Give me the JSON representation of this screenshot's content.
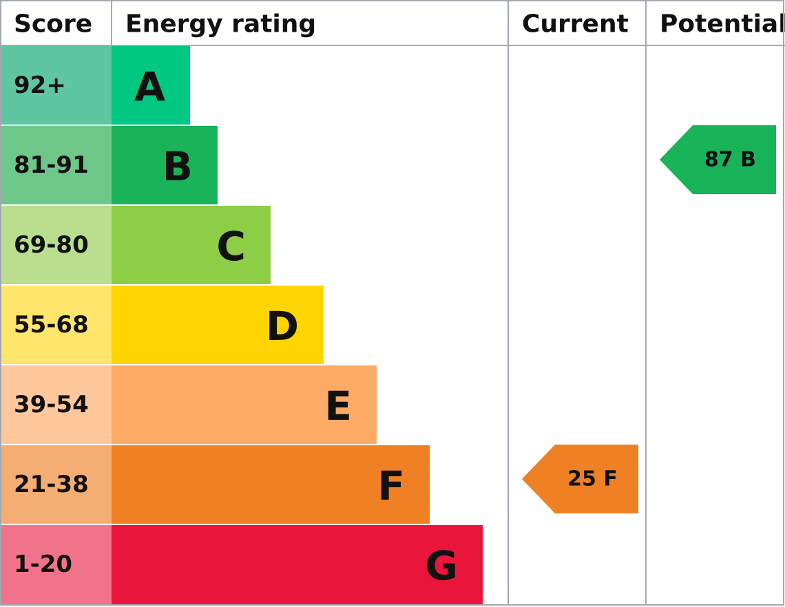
{
  "header": {
    "score": "Score",
    "energy_rating": "Energy rating",
    "current": "Current",
    "potential": "Potential"
  },
  "bands": [
    {
      "score": "92+",
      "letter": "A",
      "color": "#00c781",
      "score_color": "#5fc6a3"
    },
    {
      "score": "81-91",
      "letter": "B",
      "color": "#19b459",
      "score_color": "#6dc88a"
    },
    {
      "score": "69-80",
      "letter": "C",
      "color": "#8dce46",
      "score_color": "#b9df8e"
    },
    {
      "score": "55-68",
      "letter": "D",
      "color": "#ffd500",
      "score_color": "#ffe56b"
    },
    {
      "score": "39-54",
      "letter": "E",
      "color": "#fcaa65",
      "score_color": "#fec89c"
    },
    {
      "score": "21-38",
      "letter": "F",
      "color": "#ef8023",
      "score_color": "#f4ad72"
    },
    {
      "score": "1-20",
      "letter": "G",
      "color": "#e9153b",
      "score_color": "#f17389"
    }
  ],
  "current": {
    "label": "25 F"
  },
  "potential": {
    "label": "87 B"
  }
}
